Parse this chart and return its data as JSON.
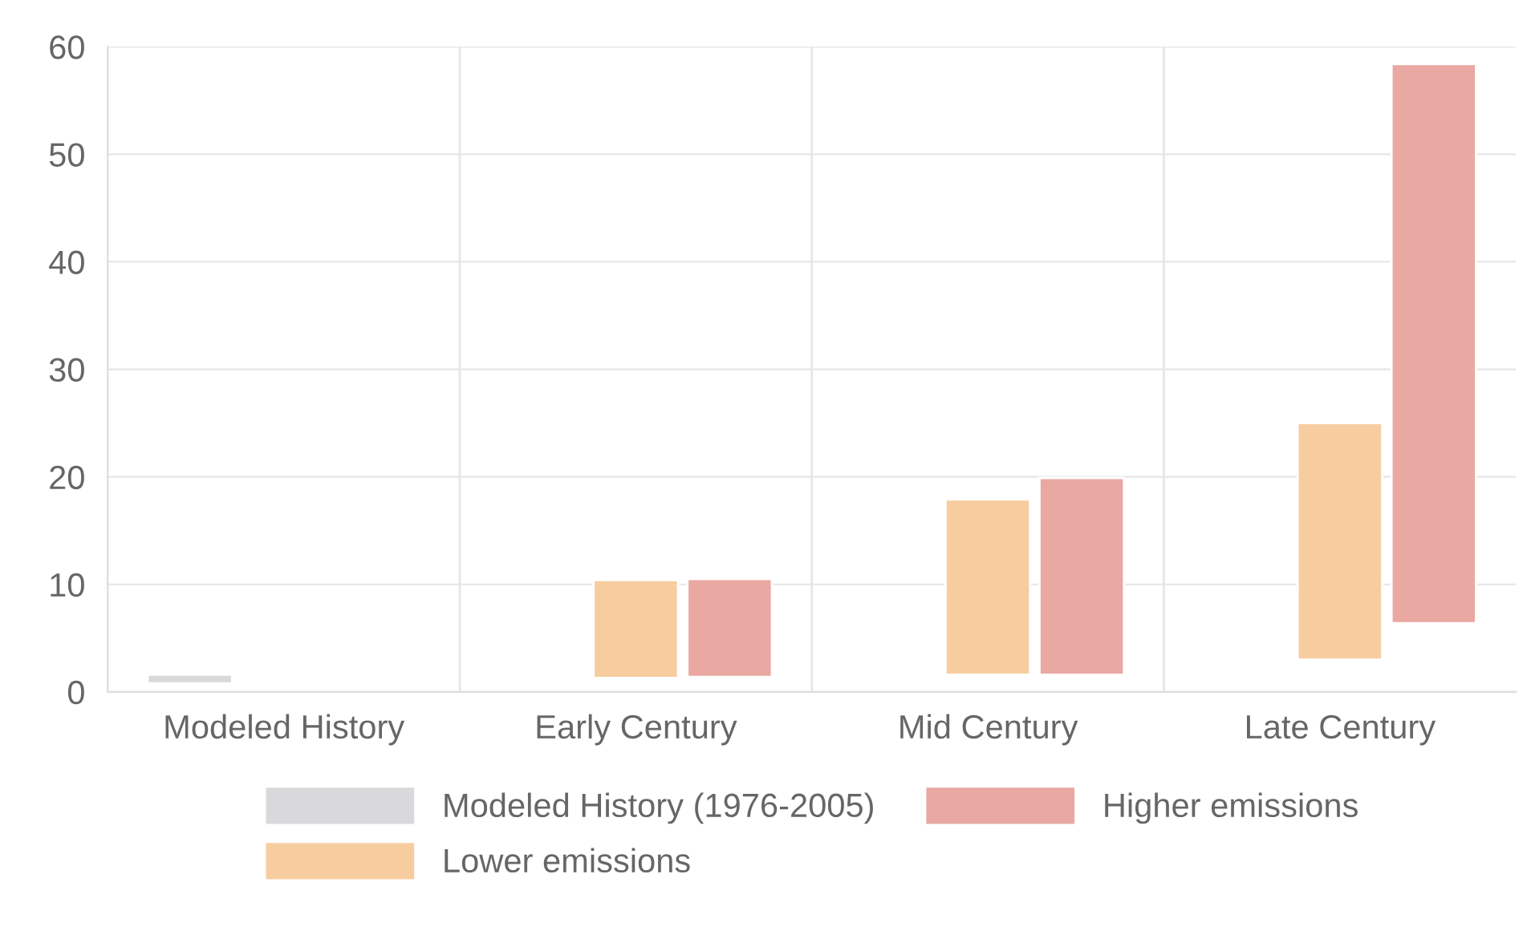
{
  "chart_data": {
    "type": "bar",
    "categories": [
      "Modeled History",
      "Early Century",
      "Mid Century",
      "Late Century"
    ],
    "series": [
      {
        "name": "Modeled History (1976-2005)",
        "color": "#d9d9dc",
        "values": [
          0.8,
          null,
          null,
          null
        ],
        "base": [
          0.8,
          null,
          null,
          null
        ]
      },
      {
        "name": "Lower emissions",
        "color": "#f7cda0",
        "values": [
          null,
          9.1,
          16.3,
          22.0
        ],
        "base": [
          null,
          1.3,
          1.6,
          3.0
        ]
      },
      {
        "name": "Higher emissions",
        "color": "#e9a8a1",
        "values": [
          null,
          9.1,
          18.3,
          52.0
        ],
        "base": [
          null,
          1.4,
          1.6,
          6.4
        ]
      }
    ],
    "ylim": [
      0,
      60
    ],
    "yticks": [
      0,
      10,
      20,
      30,
      40,
      50,
      60
    ],
    "grid": true,
    "legend": "bottom"
  }
}
